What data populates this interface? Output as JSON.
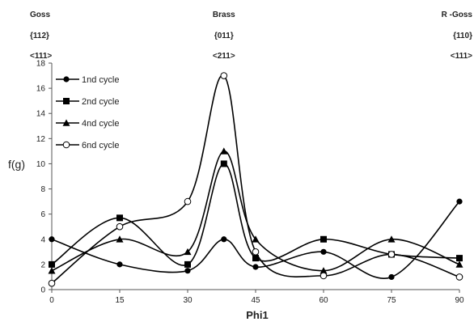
{
  "chart_data": {
    "type": "line",
    "xlabel": "Phi1",
    "ylabel": "f(g)",
    "xlim": [
      0,
      90
    ],
    "ylim": [
      0,
      18
    ],
    "xticks": [
      0,
      15,
      30,
      45,
      60,
      75,
      90
    ],
    "yticks": [
      0,
      2,
      4,
      6,
      8,
      10,
      12,
      14,
      16,
      18
    ],
    "legend": "top-left",
    "grid": false,
    "annotations": [
      {
        "x": 0,
        "lines": [
          "Goss",
          "{112}",
          "<111>"
        ]
      },
      {
        "x": 38,
        "lines": [
          "Brass",
          "{011}",
          "<211>"
        ]
      },
      {
        "x": 90,
        "lines": [
          "R -Goss",
          "{110}",
          "<111>"
        ]
      }
    ],
    "x": [
      0,
      15,
      30,
      38,
      45,
      60,
      75,
      90
    ],
    "series": [
      {
        "name": "1nd cycle",
        "marker": "filled-circle",
        "values": [
          4,
          2,
          1.5,
          4,
          1.8,
          3,
          1,
          7
        ]
      },
      {
        "name": "2nd cycle",
        "marker": "filled-square",
        "values": [
          2,
          5.7,
          2,
          10,
          2.5,
          4,
          2.8,
          2.5
        ]
      },
      {
        "name": "4nd cycle",
        "marker": "filled-triangle",
        "values": [
          1.5,
          4,
          3,
          11,
          4,
          1.5,
          4,
          2
        ]
      },
      {
        "name": "6nd cycle",
        "marker": "open-circle",
        "values": [
          0.5,
          5,
          7,
          17,
          3,
          1.1,
          2.8,
          1
        ]
      }
    ]
  }
}
